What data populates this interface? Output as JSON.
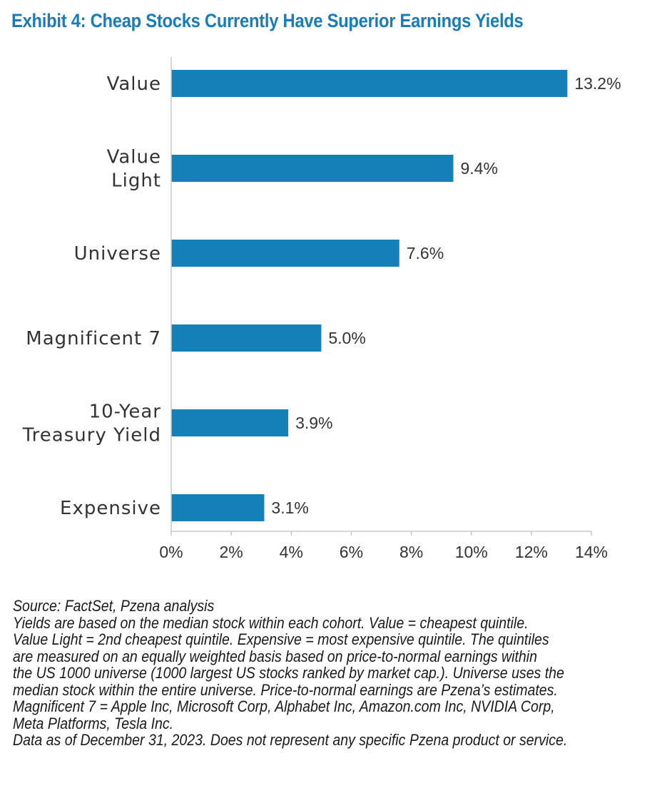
{
  "title": "Exhibit 4: Cheap Stocks Currently Have Superior Earnings Yields",
  "colors": {
    "bar": "#1380b8",
    "title": "#1a7bb9",
    "axis": "#c8c8c8"
  },
  "chart_data": {
    "type": "bar",
    "orientation": "horizontal",
    "categories": [
      [
        "Value"
      ],
      [
        "Value",
        "Light"
      ],
      [
        "Universe"
      ],
      [
        "Magnificent 7"
      ],
      [
        "10-Year",
        "Treasury Yield"
      ],
      [
        "Expensive"
      ]
    ],
    "values": [
      13.2,
      9.4,
      7.6,
      5.0,
      3.9,
      3.1
    ],
    "value_labels": [
      "13.2%",
      "9.4%",
      "7.6%",
      "5.0%",
      "3.9%",
      "3.1%"
    ],
    "xlim": [
      0,
      14
    ],
    "xticks": [
      0,
      2,
      4,
      6,
      8,
      10,
      12,
      14
    ],
    "xtick_labels": [
      "0%",
      "2%",
      "4%",
      "6%",
      "8%",
      "10%",
      "12%",
      "14%"
    ],
    "xlabel": "",
    "ylabel": "",
    "grid": false,
    "legend": "none"
  },
  "notes": [
    "Source: FactSet, Pzena analysis",
    "Yields are based on the median stock within each cohort. Value = cheapest quintile.",
    "Value Light = 2nd cheapest quintile. Expensive = most expensive quintile. The quintiles",
    "are measured on an equally weighted basis based on price-to-normal earnings within",
    "the US 1000 universe (1000 largest US stocks ranked by market cap.). Universe uses the",
    "median stock within the entire universe. Price-to-normal earnings are Pzena’s estimates.",
    "Magnificent 7 = Apple Inc, Microsoft Corp, Alphabet Inc, Amazon.com Inc, NVIDIA Corp,",
    "Meta Platforms, Tesla Inc.",
    "Data as of December 31, 2023. Does not represent any specific Pzena product or service."
  ]
}
